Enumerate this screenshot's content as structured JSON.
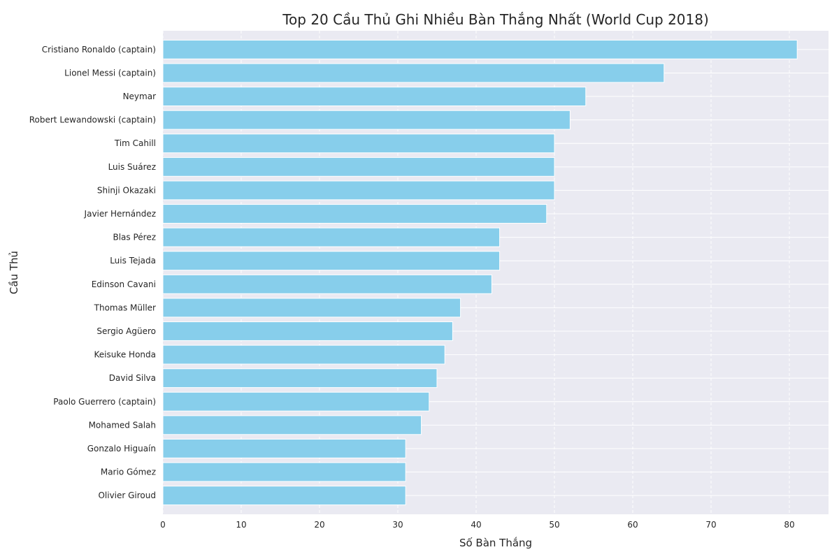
{
  "chart_data": {
    "type": "bar",
    "orientation": "horizontal",
    "title": "Top 20 Cầu Thủ Ghi Nhiều Bàn Thắng Nhất (World Cup 2018)",
    "xlabel": "Số Bàn Thắng",
    "ylabel": "Cầu Thủ",
    "xlim": [
      0,
      85
    ],
    "xticks": [
      "0",
      "10",
      "20",
      "30",
      "40",
      "50",
      "60",
      "70",
      "80"
    ],
    "grid": true,
    "bar_color": "#87CEEB",
    "background_color": "#EAEAF2",
    "categories": [
      "Cristiano Ronaldo (captain)",
      "Lionel Messi (captain)",
      "Neymar",
      "Robert Lewandowski (captain)",
      "Tim Cahill",
      "Luis Suárez",
      "Shinji Okazaki",
      "Javier Hernández",
      "Blas Pérez",
      "Luis Tejada",
      "Edinson Cavani",
      "Thomas Müller",
      "Sergio Agüero",
      "Keisuke Honda",
      "David Silva",
      "Paolo Guerrero (captain)",
      "Mohamed Salah",
      "Gonzalo Higuaín",
      "Mario Gómez",
      "Olivier Giroud"
    ],
    "values": [
      81,
      64,
      54,
      52,
      50,
      50,
      50,
      49,
      43,
      43,
      42,
      38,
      37,
      36,
      35,
      34,
      33,
      31,
      31,
      31
    ]
  }
}
